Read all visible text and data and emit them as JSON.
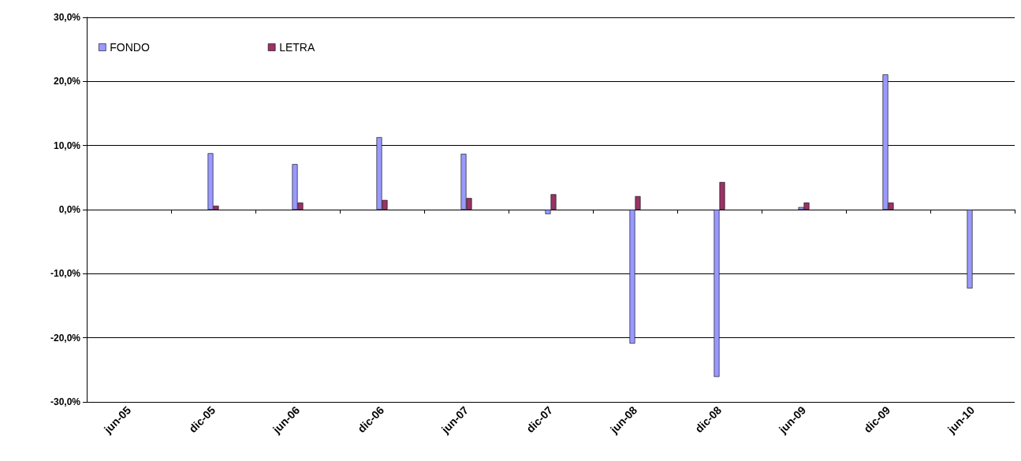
{
  "chart_data": {
    "type": "bar",
    "categories": [
      "jun-05",
      "dic-05",
      "jun-06",
      "dic-06",
      "jun-07",
      "dic-07",
      "jun-08",
      "dic-08",
      "jun-09",
      "dic-09",
      "jun-10"
    ],
    "series": [
      {
        "name": "FONDO",
        "color": "#9999ff",
        "values": [
          null,
          8.8,
          7.1,
          11.3,
          8.7,
          -0.7,
          -20.9,
          -26.1,
          0.4,
          21.1,
          -12.3
        ]
      },
      {
        "name": "LETRA",
        "color": "#993366",
        "values": [
          null,
          0.6,
          1.1,
          1.5,
          1.8,
          2.4,
          2.1,
          4.3,
          1.1,
          1.1,
          null
        ]
      }
    ],
    "ylim": [
      -30,
      30
    ],
    "yticks": [
      {
        "value": -30,
        "label": "-30,0%"
      },
      {
        "value": -20,
        "label": "-20,0%"
      },
      {
        "value": -10,
        "label": "-10,0%"
      },
      {
        "value": 0,
        "label": "0,0%"
      },
      {
        "value": 10,
        "label": "10,0%"
      },
      {
        "value": 20,
        "label": "20,0%"
      },
      {
        "value": 30,
        "label": "30,0%"
      }
    ],
    "grid": "y",
    "legend": "top left"
  }
}
